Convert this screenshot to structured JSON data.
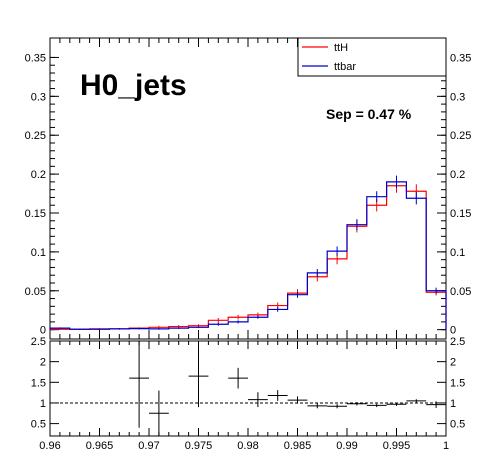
{
  "chart_data": [
    {
      "type": "histogram",
      "title": "H0_jets",
      "annotation": "Sep = 0.47 %",
      "xlim": [
        0.96,
        1.0
      ],
      "ylim": [
        -0.012,
        0.375
      ],
      "y_ticks": [
        0,
        0.05,
        0.1,
        0.15,
        0.2,
        0.25,
        0.3,
        0.35
      ],
      "y_tick_labels": [
        "0",
        "0.05",
        "0.1",
        "0.15",
        "0.2",
        "0.25",
        "0.3",
        "0.35"
      ],
      "bin_edges": [
        0.96,
        0.962,
        0.964,
        0.966,
        0.968,
        0.97,
        0.972,
        0.974,
        0.976,
        0.978,
        0.98,
        0.982,
        0.984,
        0.986,
        0.988,
        0.99,
        0.992,
        0.994,
        0.996,
        0.998,
        1.0
      ],
      "legend": {
        "position": "top-right",
        "entries": [
          "ttH",
          "ttbar"
        ]
      },
      "series": [
        {
          "name": "ttH",
          "color": "#ff0000",
          "values": [
            0.0005,
            0.0005,
            0.001,
            0.001,
            0.002,
            0.003,
            0.004,
            0.005,
            0.012,
            0.016,
            0.019,
            0.031,
            0.047,
            0.068,
            0.091,
            0.133,
            0.16,
            0.185,
            0.178,
            0.048
          ],
          "errors": [
            0.0005,
            0.0005,
            0.001,
            0.001,
            0.001,
            0.002,
            0.002,
            0.002,
            0.003,
            0.003,
            0.003,
            0.004,
            0.005,
            0.006,
            0.007,
            0.008,
            0.008,
            0.009,
            0.009,
            0.004
          ]
        },
        {
          "name": "ttbar",
          "color": "#0000cc",
          "values": [
            0.002,
            0.0005,
            0.0005,
            0.001,
            0.0013,
            0.001,
            0.002,
            0.003,
            0.007,
            0.01,
            0.016,
            0.026,
            0.045,
            0.073,
            0.101,
            0.135,
            0.171,
            0.19,
            0.169,
            0.05
          ],
          "errors": [
            0.001,
            0.0005,
            0.0005,
            0.001,
            0.001,
            0.001,
            0.001,
            0.001,
            0.002,
            0.002,
            0.002,
            0.003,
            0.004,
            0.005,
            0.006,
            0.007,
            0.007,
            0.008,
            0.008,
            0.004
          ]
        }
      ]
    },
    {
      "type": "scatter",
      "subtype": "ratio",
      "xlim": [
        0.96,
        1.0
      ],
      "ylim": [
        0.2,
        2.5
      ],
      "x_ticks": [
        0.96,
        0.965,
        0.97,
        0.975,
        0.98,
        0.985,
        0.99,
        0.995,
        1.0
      ],
      "x_tick_labels": [
        "0.96",
        "0.965",
        "0.97",
        "0.975",
        "0.98",
        "0.985",
        "0.99",
        "0.995",
        "1"
      ],
      "y_ticks": [
        0.5,
        1,
        1.5,
        2,
        2.5
      ],
      "y_tick_labels": [
        "0.5",
        "1",
        "1.5",
        "2",
        "2.5"
      ],
      "reference_line": 1,
      "points": [
        {
          "x": 0.969,
          "y": 1.6,
          "xerr": 0.001,
          "yerr": 1.2
        },
        {
          "x": 0.971,
          "y": 0.75,
          "xerr": 0.001,
          "yerr": 0.55
        },
        {
          "x": 0.975,
          "y": 1.65,
          "xerr": 0.001,
          "yerr": 0.75
        },
        {
          "x": 0.979,
          "y": 1.6,
          "xerr": 0.001,
          "yerr": 0.25
        },
        {
          "x": 0.981,
          "y": 1.08,
          "xerr": 0.001,
          "yerr": 0.18
        },
        {
          "x": 0.983,
          "y": 1.18,
          "xerr": 0.001,
          "yerr": 0.13
        },
        {
          "x": 0.985,
          "y": 1.07,
          "xerr": 0.001,
          "yerr": 0.09
        },
        {
          "x": 0.987,
          "y": 0.93,
          "xerr": 0.001,
          "yerr": 0.06
        },
        {
          "x": 0.989,
          "y": 0.92,
          "xerr": 0.001,
          "yerr": 0.05
        },
        {
          "x": 0.991,
          "y": 0.98,
          "xerr": 0.001,
          "yerr": 0.04
        },
        {
          "x": 0.993,
          "y": 0.94,
          "xerr": 0.001,
          "yerr": 0.04
        },
        {
          "x": 0.995,
          "y": 0.97,
          "xerr": 0.001,
          "yerr": 0.04
        },
        {
          "x": 0.997,
          "y": 1.05,
          "xerr": 0.001,
          "yerr": 0.04
        },
        {
          "x": 0.999,
          "y": 0.96,
          "xerr": 0.001,
          "yerr": 0.08
        }
      ]
    }
  ]
}
